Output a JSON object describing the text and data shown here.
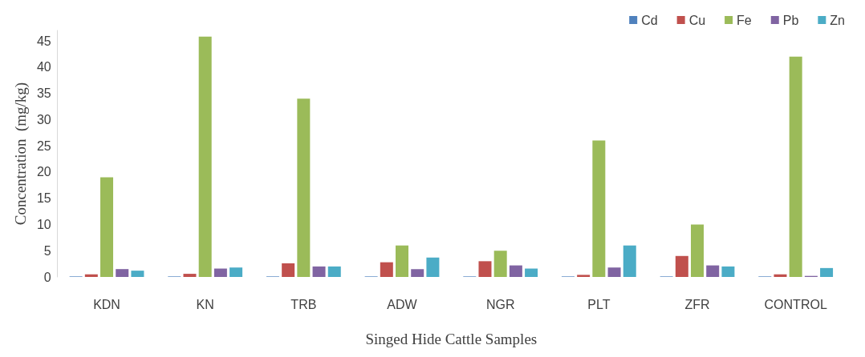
{
  "chart_data": {
    "type": "bar",
    "xlabel": "Singed Hide Cattle Samples",
    "ylabel": "Concentration  (mg/kg)",
    "categories": [
      "KDN",
      "KN",
      "TRB",
      "ADW",
      "NGR",
      "PLT",
      "ZFR",
      "CONTROL"
    ],
    "series": [
      {
        "name": "Cd",
        "color": "#4f81bd",
        "values": [
          0.1,
          0.1,
          0.1,
          0.1,
          0.1,
          0.1,
          0.1,
          0.1
        ]
      },
      {
        "name": "Cu",
        "color": "#c0504d",
        "values": [
          0.5,
          0.6,
          2.6,
          2.8,
          3,
          0.4,
          4,
          0.5
        ]
      },
      {
        "name": "Fe",
        "color": "#9bbb59",
        "values": [
          19,
          45.8,
          34,
          6,
          5,
          26,
          10,
          42
        ]
      },
      {
        "name": "Pb",
        "color": "#8064a2",
        "values": [
          1.5,
          1.6,
          2,
          1.5,
          2.2,
          1.8,
          2.2,
          0.2
        ]
      },
      {
        "name": "Zn",
        "color": "#4bacc6",
        "values": [
          1.2,
          1.8,
          2,
          3.7,
          1.6,
          6,
          2,
          1.7
        ]
      }
    ],
    "ylim": [
      0,
      47
    ],
    "yticks": [
      0,
      5,
      10,
      15,
      20,
      25,
      30,
      35,
      40,
      45
    ],
    "grid": false,
    "legend": "top right"
  }
}
